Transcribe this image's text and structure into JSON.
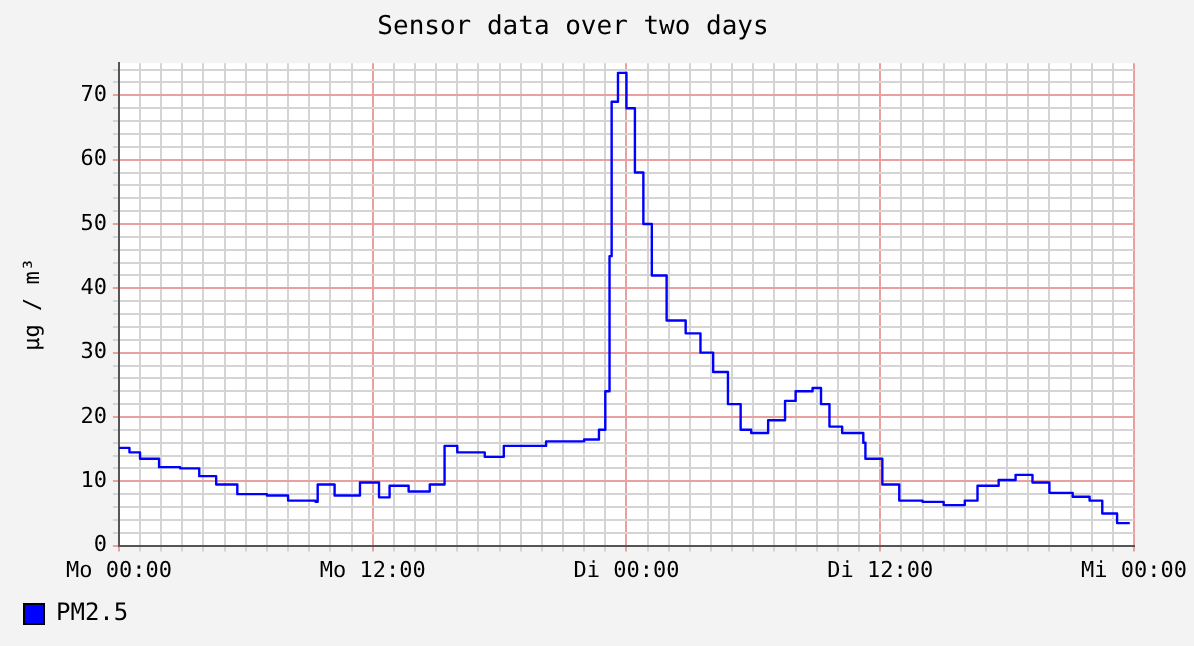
{
  "chart_data": {
    "type": "step",
    "title": "Sensor data over two days",
    "ylabel": "µg / m³",
    "x": [
      "--01-01T00:00",
      "--01-01T00:30",
      "--01-01T01:00",
      "--01-01T01:54",
      "--01-01T02:54",
      "--01-01T03:48",
      "--01-01T04:36",
      "--01-01T05:36",
      "--01-01T07:00",
      "--01-01T08:00",
      "--01-01T09:18",
      "--01-01T09:24",
      "--01-01T10:12",
      "--01-01T11:24",
      "--01-01T12:18",
      "--01-01T12:48",
      "--01-01T13:42",
      "--01-01T14:42",
      "--01-01T15:24",
      "--01-01T16:00",
      "--01-01T17:18",
      "--01-01T18:12",
      "--01-01T19:12",
      "--01-01T20:12",
      "--01-01T20:24",
      "--01-01T22:00",
      "--01-01T22:42",
      "--01-01T23:00",
      "--01-01T23:12",
      "--01-01T23:18",
      "--01-01T23:36",
      "--01-02T00:00",
      "--01-02T00:24",
      "--01-02T00:48",
      "--01-02T01:12",
      "--01-02T01:54",
      "--01-02T02:48",
      "--01-02T03:30",
      "--01-02T04:06",
      "--01-02T04:48",
      "--01-02T05:24",
      "--01-02T05:54",
      "--01-02T06:42",
      "--01-02T07:30",
      "--01-02T08:00",
      "--01-02T08:48",
      "--01-02T09:12",
      "--01-02T09:36",
      "--01-02T10:12",
      "--01-02T11:12",
      "--01-02T11:18",
      "--01-02T12:06",
      "--01-02T12:54",
      "--01-02T14:00",
      "--01-02T15:00",
      "--01-02T16:00",
      "--01-02T16:36",
      "--01-02T17:36",
      "--01-02T18:24",
      "--01-02T19:12",
      "--01-02T20:00",
      "--01-02T21:06",
      "--01-02T21:54",
      "--01-02T22:30",
      "--01-02T23:12",
      "--01-02T23:48"
    ],
    "series": [
      {
        "name": "PM2.5",
        "color": "#0000ff",
        "values": [
          15.2,
          14.5,
          13.5,
          12.2,
          12,
          10.8,
          9.5,
          8,
          7.8,
          7,
          6.8,
          9.5,
          7.8,
          9.8,
          7.5,
          9.3,
          8.4,
          9.5,
          15.5,
          14.5,
          13.8,
          15.5,
          15.5,
          16.2,
          16.2,
          16.5,
          18,
          24,
          45,
          69,
          73.5,
          68,
          58,
          50,
          42,
          35,
          33,
          30,
          27,
          22,
          18,
          17.5,
          19.5,
          22.5,
          24,
          24.5,
          22,
          18.5,
          17.5,
          16,
          13.5,
          9.5,
          7,
          6.8,
          6.3,
          7,
          9.3,
          10.2,
          11,
          9.8,
          8.2,
          7.6,
          7,
          5,
          3.5,
          3.5
        ]
      }
    ],
    "xlim": [
      "--01-01T00:00",
      "--01-03T00:00"
    ],
    "xticks": [
      {
        "value": "--01-01T00:00",
        "label": "Mo 00:00"
      },
      {
        "value": "--01-01T01:00",
        "label": null
      },
      {
        "value": "--01-01T02:00",
        "label": null
      },
      {
        "value": "--01-01T03:00",
        "label": null
      },
      {
        "value": "--01-01T04:00",
        "label": null
      },
      {
        "value": "--01-01T05:00",
        "label": null
      },
      {
        "value": "--01-01T06:00",
        "label": null
      },
      {
        "value": "--01-01T07:00",
        "label": null
      },
      {
        "value": "--01-01T08:00",
        "label": null
      },
      {
        "value": "--01-01T09:00",
        "label": null
      },
      {
        "value": "--01-01T10:00",
        "label": null
      },
      {
        "value": "--01-01T11:00",
        "label": null
      },
      {
        "value": "--01-01T12:00",
        "label": "Mo 12:00"
      },
      {
        "value": "--01-01T13:00",
        "label": null
      },
      {
        "value": "--01-01T14:00",
        "label": null
      },
      {
        "value": "--01-01T15:00",
        "label": null
      },
      {
        "value": "--01-01T16:00",
        "label": null
      },
      {
        "value": "--01-01T17:00",
        "label": null
      },
      {
        "value": "--01-01T18:00",
        "label": null
      },
      {
        "value": "--01-01T19:00",
        "label": null
      },
      {
        "value": "--01-01T20:00",
        "label": null
      },
      {
        "value": "--01-01T21:00",
        "label": null
      },
      {
        "value": "--01-01T22:00",
        "label": null
      },
      {
        "value": "--01-01T23:00",
        "label": null
      },
      {
        "value": "--01-02T00:00",
        "label": "Di 00:00"
      },
      {
        "value": "--01-02T01:00",
        "label": null
      },
      {
        "value": "--01-02T02:00",
        "label": null
      },
      {
        "value": "--01-02T03:00",
        "label": null
      },
      {
        "value": "--01-02T04:00",
        "label": null
      },
      {
        "value": "--01-02T05:00",
        "label": null
      },
      {
        "value": "--01-02T06:00",
        "label": null
      },
      {
        "value": "--01-02T07:00",
        "label": null
      },
      {
        "value": "--01-02T08:00",
        "label": null
      },
      {
        "value": "--01-02T09:00",
        "label": null
      },
      {
        "value": "--01-02T10:00",
        "label": null
      },
      {
        "value": "--01-02T11:00",
        "label": null
      },
      {
        "value": "--01-02T12:00",
        "label": "Di 12:00"
      },
      {
        "value": "--01-02T13:00",
        "label": null
      },
      {
        "value": "--01-02T14:00",
        "label": null
      },
      {
        "value": "--01-02T15:00",
        "label": null
      },
      {
        "value": "--01-02T16:00",
        "label": null
      },
      {
        "value": "--01-02T17:00",
        "label": null
      },
      {
        "value": "--01-02T18:00",
        "label": null
      },
      {
        "value": "--01-02T19:00",
        "label": null
      },
      {
        "value": "--01-02T20:00",
        "label": null
      },
      {
        "value": "--01-02T21:00",
        "label": null
      },
      {
        "value": "--01-02T22:00",
        "label": null
      },
      {
        "value": "--01-02T23:00",
        "label": null
      },
      {
        "value": "--01-03T00:00",
        "label": "Mi 00:00"
      }
    ],
    "ylim": [
      0,
      75
    ],
    "yticks": [
      0,
      {
        "value": 2,
        "label": null
      },
      {
        "value": 4,
        "label": null
      },
      {
        "value": 6,
        "label": null
      },
      {
        "value": 8,
        "label": null
      },
      10,
      {
        "value": 12,
        "label": null
      },
      {
        "value": 14,
        "label": null
      },
      {
        "value": 16,
        "label": null
      },
      {
        "value": 18,
        "label": null
      },
      20,
      {
        "value": 22,
        "label": null
      },
      {
        "value": 24,
        "label": null
      },
      {
        "value": 26,
        "label": null
      },
      {
        "value": 28,
        "label": null
      },
      30,
      {
        "value": 32,
        "label": null
      },
      {
        "value": 34,
        "label": null
      },
      {
        "value": 36,
        "label": null
      },
      {
        "value": 38,
        "label": null
      },
      40,
      {
        "value": 42,
        "label": null
      },
      {
        "value": 44,
        "label": null
      },
      {
        "value": 46,
        "label": null
      },
      {
        "value": 48,
        "label": null
      },
      50,
      {
        "value": 52,
        "label": null
      },
      {
        "value": 54,
        "label": null
      },
      {
        "value": 56,
        "label": null
      },
      {
        "value": 58,
        "label": null
      },
      60,
      {
        "value": 62,
        "label": null
      },
      {
        "value": 64,
        "label": null
      },
      {
        "value": 66,
        "label": null
      },
      {
        "value": 68,
        "label": null
      },
      70,
      {
        "value": 72,
        "label": null
      },
      {
        "value": 74,
        "label": null
      }
    ],
    "grid": true,
    "legend": "bottom left",
    "marker": "none",
    "line_style": "solid"
  }
}
